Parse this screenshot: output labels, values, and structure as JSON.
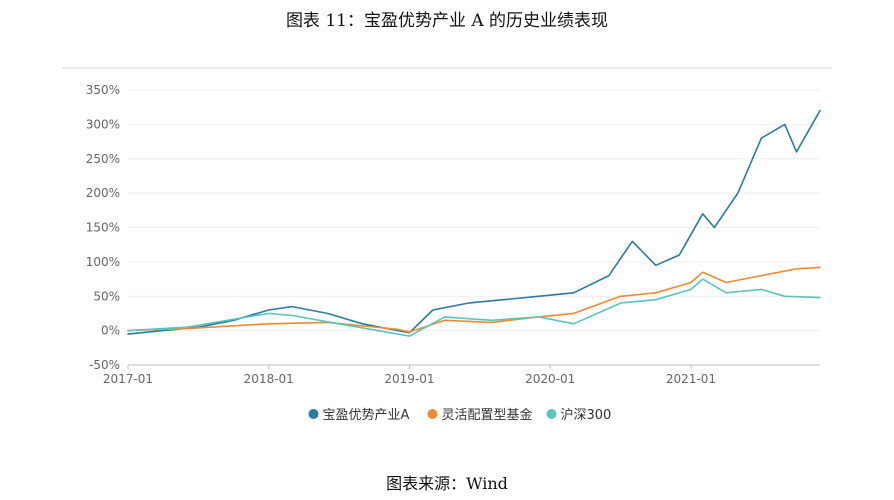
{
  "figure_title": "图表 11：宝盈优势产业 A 的历史业绩表现",
  "source_note": "图表来源：Wind",
  "chart_data": {
    "type": "line",
    "title": "",
    "xlabel": "",
    "ylabel": "",
    "x_ticks": [
      "2017-01",
      "2018-01",
      "2019-01",
      "2020-01",
      "2021-01"
    ],
    "x_range": [
      "2017-01",
      "2021-12"
    ],
    "y_ticks": [
      "350%",
      "300%",
      "250%",
      "200%",
      "150%",
      "100%",
      "50%",
      "0%",
      "-50%"
    ],
    "ylim": [
      -50,
      350
    ],
    "grid": "horizontal",
    "legend": "bottom",
    "series": [
      {
        "name": "宝盈优势产业A",
        "color": "#2b7ba3",
        "x": [
          "2017-01",
          "2017-04",
          "2017-07",
          "2017-10",
          "2018-01",
          "2018-03",
          "2018-06",
          "2018-09",
          "2018-12",
          "2019-01",
          "2019-03",
          "2019-06",
          "2019-09",
          "2019-12",
          "2020-03",
          "2020-06",
          "2020-08",
          "2020-10",
          "2020-12",
          "2021-02",
          "2021-03",
          "2021-05",
          "2021-07",
          "2021-09",
          "2021-10",
          "2021-12"
        ],
        "values": [
          -5,
          0,
          5,
          15,
          30,
          35,
          25,
          10,
          0,
          -3,
          30,
          40,
          45,
          50,
          55,
          80,
          130,
          95,
          110,
          170,
          150,
          200,
          280,
          300,
          260,
          320
        ]
      },
      {
        "name": "灵活配置型基金",
        "color": "#f28a2e",
        "x": [
          "2017-01",
          "2017-06",
          "2018-01",
          "2018-06",
          "2018-12",
          "2019-01",
          "2019-04",
          "2019-08",
          "2019-12",
          "2020-03",
          "2020-07",
          "2020-10",
          "2021-01",
          "2021-02",
          "2021-04",
          "2021-07",
          "2021-10",
          "2021-12"
        ],
        "values": [
          0,
          3,
          10,
          12,
          2,
          -2,
          15,
          12,
          20,
          25,
          50,
          55,
          70,
          85,
          70,
          80,
          90,
          92
        ]
      },
      {
        "name": "沪深300",
        "color": "#5bc4c0",
        "x": [
          "2017-01",
          "2017-06",
          "2018-01",
          "2018-03",
          "2018-07",
          "2018-12",
          "2019-01",
          "2019-04",
          "2019-08",
          "2019-12",
          "2020-03",
          "2020-07",
          "2020-10",
          "2021-01",
          "2021-02",
          "2021-04",
          "2021-07",
          "2021-09",
          "2021-12"
        ],
        "values": [
          0,
          5,
          25,
          22,
          10,
          -5,
          -8,
          20,
          15,
          20,
          10,
          40,
          45,
          60,
          75,
          55,
          60,
          50,
          48
        ]
      }
    ]
  }
}
